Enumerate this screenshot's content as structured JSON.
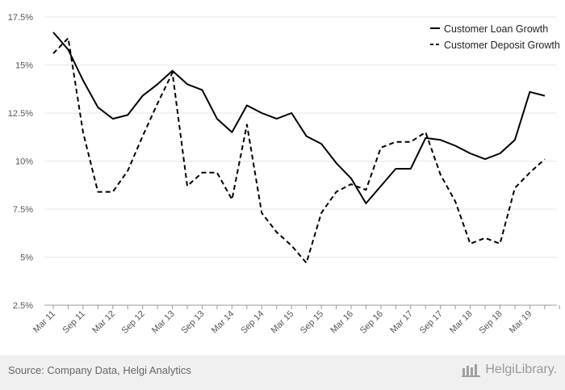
{
  "chart_data": {
    "type": "line",
    "title": "",
    "xlabel": "",
    "ylabel": "",
    "ylim": [
      2.5,
      17.5
    ],
    "yticks": [
      {
        "value": 2.5,
        "label": "2.5%"
      },
      {
        "value": 5,
        "label": "5%"
      },
      {
        "value": 7.5,
        "label": "7.5%"
      },
      {
        "value": 10,
        "label": "10%"
      },
      {
        "value": 12.5,
        "label": "12.5%"
      },
      {
        "value": 15,
        "label": "15%"
      },
      {
        "value": 17.5,
        "label": "17.5%"
      }
    ],
    "categories": [
      "Mar 11",
      "Jun 11",
      "Sep 11",
      "Dec 11",
      "Mar 12",
      "Jun 12",
      "Sep 12",
      "Dec 12",
      "Mar 13",
      "Jun 13",
      "Sep 13",
      "Dec 13",
      "Mar 14",
      "Jun 14",
      "Sep 14",
      "Dec 14",
      "Mar 15",
      "Jun 15",
      "Sep 15",
      "Dec 15",
      "Mar 16",
      "Jun 16",
      "Sep 16",
      "Dec 16",
      "Mar 17",
      "Jun 17",
      "Sep 17",
      "Dec 17",
      "Mar 18",
      "Jun 18",
      "Sep 18",
      "Dec 18",
      "Mar 19",
      "Jun 19",
      "Sep 19"
    ],
    "xtick_labels": [
      "Mar 11",
      "Sep 11",
      "Mar 12",
      "Sep 12",
      "Mar 13",
      "Sep 13",
      "Mar 14",
      "Sep 14",
      "Mar 15",
      "Sep 15",
      "Mar 16",
      "Sep 16",
      "Mar 17",
      "Sep 17",
      "Mar 18",
      "Sep 18",
      "Mar 19"
    ],
    "series": [
      {
        "name": "Customer Loan Growth",
        "style": "solid",
        "values": [
          16.7,
          15.8,
          14.2,
          12.8,
          12.2,
          12.4,
          13.4,
          14.0,
          14.7,
          14.0,
          13.7,
          12.2,
          11.5,
          12.9,
          12.5,
          12.2,
          12.5,
          11.3,
          10.9,
          9.9,
          9.1,
          7.8,
          8.7,
          9.6,
          9.6,
          11.2,
          11.1,
          10.8,
          10.4,
          10.1,
          10.4,
          11.1,
          13.6,
          13.4,
          null
        ]
      },
      {
        "name": "Customer Deposit Growth",
        "style": "dashed",
        "values": [
          15.6,
          16.4,
          11.5,
          8.4,
          8.4,
          9.5,
          11.3,
          13.0,
          14.6,
          8.7,
          9.4,
          9.4,
          8.0,
          11.9,
          7.3,
          6.3,
          5.6,
          4.7,
          7.3,
          8.4,
          8.8,
          8.5,
          10.7,
          11.0,
          11.0,
          11.5,
          9.3,
          7.9,
          5.7,
          6.0,
          5.7,
          8.6,
          9.4,
          10.1,
          null
        ]
      }
    ],
    "grid": true,
    "legend_position": "top-right"
  },
  "footer": {
    "source": "Source: Company Data, Helgi Analytics",
    "brand": "HelgiLibrary."
  }
}
